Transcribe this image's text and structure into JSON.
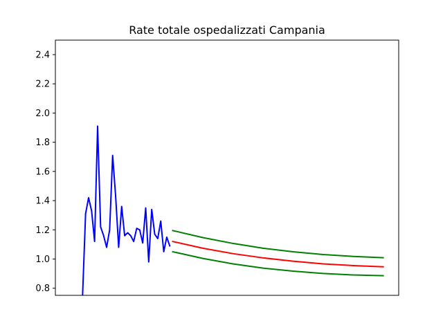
{
  "chart_data": {
    "type": "line",
    "title": "Rate totale ospedalizzati Campania",
    "xlabel": "",
    "ylabel": "",
    "ylim": [
      0.75,
      2.5
    ],
    "y_ticks": [
      {
        "value": 0.8,
        "label": "0.8"
      },
      {
        "value": 1.0,
        "label": "1.0"
      },
      {
        "value": 1.2,
        "label": "1.2"
      },
      {
        "value": 1.4,
        "label": "1.4"
      },
      {
        "value": 1.6,
        "label": "1.6"
      },
      {
        "value": 1.8,
        "label": "1.8"
      },
      {
        "value": 2.0,
        "label": "2.0"
      },
      {
        "value": 2.2,
        "label": "2.2"
      },
      {
        "value": 2.4,
        "label": "2.4"
      }
    ],
    "x_ticks": [],
    "xlim": [
      0,
      100
    ],
    "grid": false,
    "series": [
      {
        "color": "#0000ff",
        "x": [
          0,
          1,
          2,
          3,
          4,
          5,
          6,
          7,
          8,
          9,
          10,
          11,
          12,
          13,
          14,
          15,
          16,
          17,
          18,
          19,
          20,
          21,
          22,
          23,
          24,
          25,
          26,
          27,
          28,
          29
        ],
        "y": [
          0.75,
          1.31,
          1.42,
          1.33,
          1.12,
          1.91,
          1.22,
          1.16,
          1.08,
          1.2,
          1.71,
          1.43,
          1.08,
          1.36,
          1.16,
          1.18,
          1.16,
          1.12,
          1.21,
          1.2,
          1.11,
          1.35,
          0.98,
          1.34,
          1.17,
          1.14,
          1.26,
          1.05,
          1.15,
          1.09
        ]
      },
      {
        "color": "#ff0000",
        "x": [
          30,
          40,
          50,
          60,
          70,
          80,
          90,
          100
        ],
        "y": [
          1.12,
          1.074,
          1.037,
          1.008,
          0.985,
          0.967,
          0.955,
          0.947
        ]
      },
      {
        "color": "#008000",
        "x": [
          30,
          40,
          50,
          60,
          70,
          80,
          90,
          100
        ],
        "y": [
          1.195,
          1.147,
          1.107,
          1.074,
          1.05,
          1.031,
          1.018,
          1.009
        ]
      },
      {
        "color": "#008000",
        "x": [
          30,
          40,
          50,
          60,
          70,
          80,
          90,
          100
        ],
        "y": [
          1.05,
          1.004,
          0.967,
          0.938,
          0.917,
          0.901,
          0.891,
          0.886
        ]
      }
    ]
  }
}
